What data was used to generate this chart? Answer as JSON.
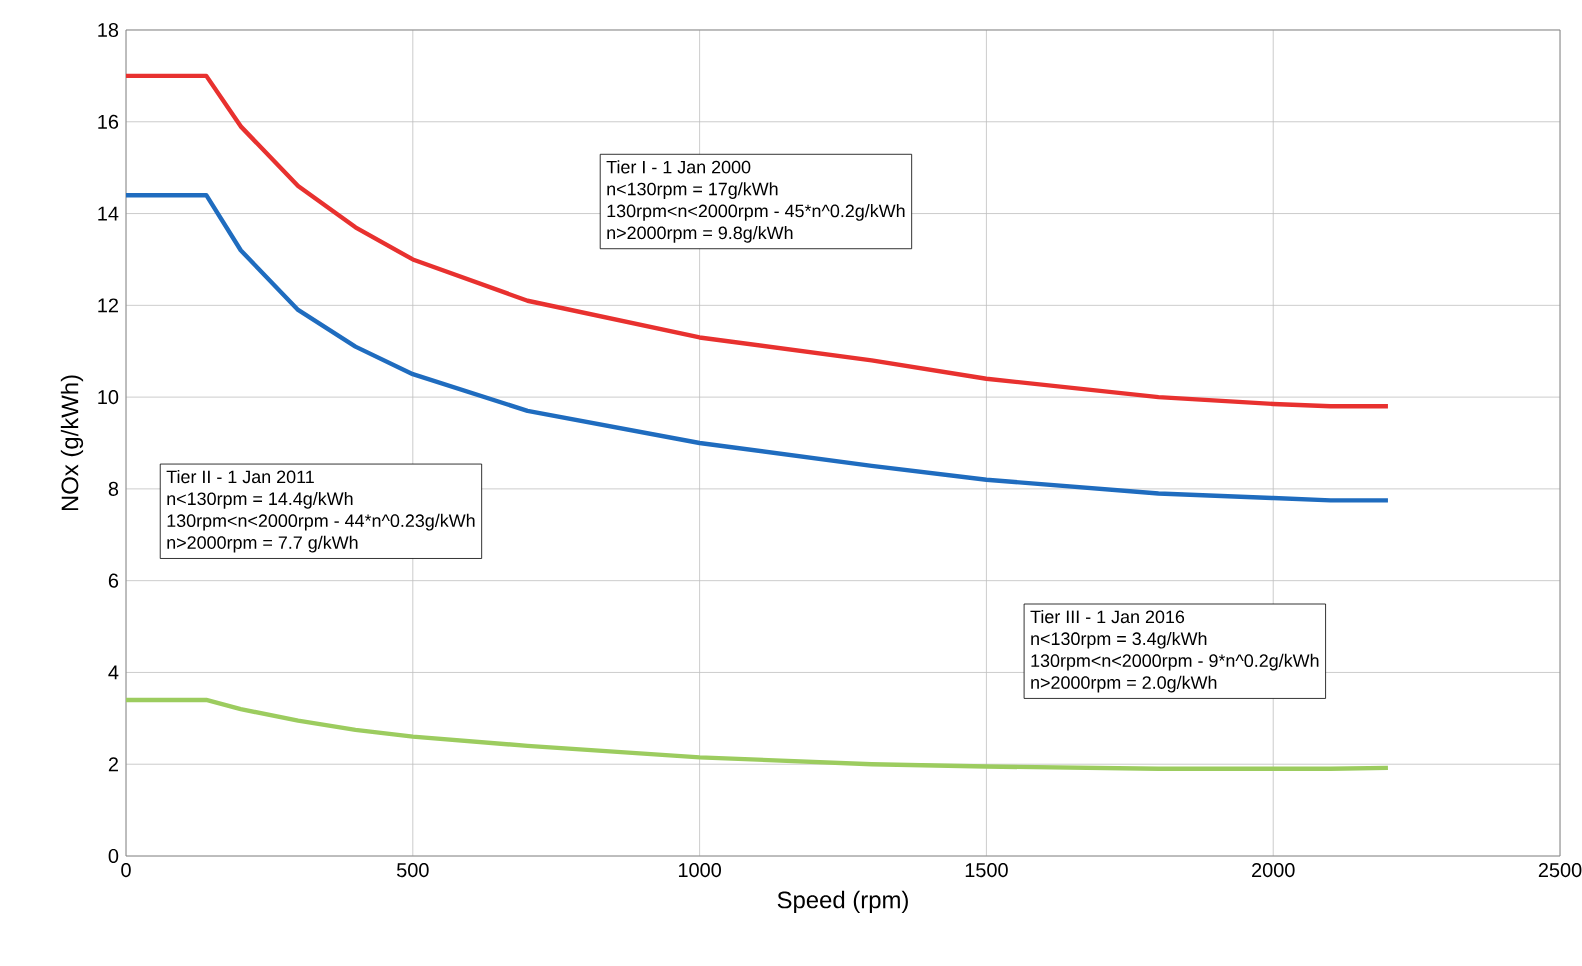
{
  "chart_data": {
    "type": "line",
    "xlabel": "Speed (rpm)",
    "ylabel": "NOx (g/kWh)",
    "xlim": [
      0,
      2500
    ],
    "xticks": [
      0,
      500,
      1000,
      1500,
      2000,
      2500
    ],
    "ylim": [
      0,
      18
    ],
    "yticks": [
      0,
      2,
      4,
      6,
      8,
      10,
      12,
      14,
      16,
      18
    ],
    "grid": true,
    "marker": "none",
    "line_style": "solid",
    "x": [
      0,
      140,
      200,
      300,
      400,
      500,
      700,
      1000,
      1300,
      1500,
      1800,
      2000,
      2100,
      2200
    ],
    "series": [
      {
        "color": "#e8312f",
        "values": [
          17.0,
          17.0,
          15.9,
          14.6,
          13.7,
          13.0,
          12.1,
          11.3,
          10.8,
          10.4,
          10.0,
          9.85,
          9.8,
          9.8
        ]
      },
      {
        "color": "#1f6cbf",
        "values": [
          14.4,
          14.4,
          13.2,
          11.9,
          11.1,
          10.5,
          9.7,
          9.0,
          8.5,
          8.2,
          7.9,
          7.8,
          7.75,
          7.75
        ]
      },
      {
        "color": "#9ccc5f",
        "values": [
          3.4,
          3.4,
          3.2,
          2.95,
          2.75,
          2.6,
          2.4,
          2.15,
          2.0,
          1.95,
          1.9,
          1.9,
          1.9,
          1.92
        ]
      }
    ],
    "annotations": [
      "Tier I - 1 Jan 2000",
      "n<130rpm = 17g/kWh",
      "130rpm<n<2000rpm - 45*n^0.2g/kWh",
      "n>2000rpm = 9.8g/kWh",
      "Tier II - 1 Jan 2011",
      "n<130rpm = 14.4g/kWh",
      "130rpm<n<2000rpm - 44*n^0.23g/kWh",
      "n>2000rpm = 7.7 g/kWh",
      "Tier III - 1 Jan 2016",
      "n<130rpm = 3.4g/kWh",
      "130rpm<n<2000rpm - 9*n^0.2g/kWh",
      "n>2000rpm = 2.0g/kWh"
    ]
  }
}
